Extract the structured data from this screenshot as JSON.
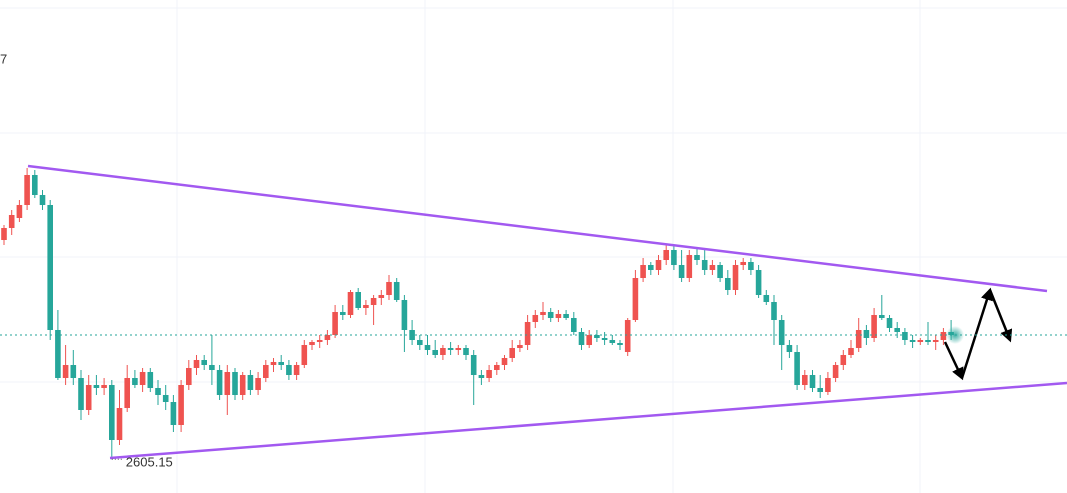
{
  "chart_data": {
    "type": "candlestick",
    "annotations": [
      "7"
    ],
    "up_color": "#ef5350",
    "down_color": "#26a69a",
    "ylim": [
      2598.4,
      2697
    ],
    "open": [
      2649,
      2651.4,
      2653.4,
      2656,
      2662,
      2658,
      2656,
      2631,
      2621.4,
      2624,
      2621.4,
      2615,
      2620,
      2619.4,
      2620,
      2609,
      2615.4,
      2621.4,
      2620,
      2622.6,
      2619.4,
      2618,
      2616.6,
      2612,
      2620,
      2623.4,
      2625,
      2624,
      2623,
      2618,
      2622.6,
      2618,
      2622,
      2619,
      2621.4,
      2624,
      2624.6,
      2624,
      2622,
      2624,
      2628,
      2628.6,
      2629,
      2630,
      2634.6,
      2634,
      2638.6,
      2635.4,
      2636,
      2637.4,
      2638,
      2640.6,
      2637,
      2631,
      2629,
      2628,
      2627,
      2626,
      2627.4,
      2627,
      2627.4,
      2626,
      2622,
      2621.4,
      2623,
      2624,
      2625.4,
      2627.4,
      2628,
      2632.6,
      2634,
      2634.6,
      2633.4,
      2634.2,
      2633.4,
      2630.6,
      2628,
      2630,
      2629.4,
      2629,
      2628.4,
      2626.6,
      2633,
      2641.4,
      2644,
      2643,
      2645,
      2647,
      2644,
      2641.4,
      2646,
      2645,
      2643,
      2644,
      2641.4,
      2639,
      2644,
      2644.6,
      2643,
      2638,
      2636.6,
      2633,
      2628,
      2626.6,
      2620,
      2622,
      2619.4,
      2618.6,
      2621.4,
      2624,
      2626,
      2627.4,
      2631,
      2629.4,
      2634,
      2633.4,
      2631.4,
      2630.6,
      2629,
      2628.6,
      2629,
      2628.6,
      2629,
      2630.6
    ],
    "high": [
      2652,
      2655,
      2657,
      2663.4,
      2663,
      2659,
      2657,
      2635,
      2628,
      2627,
      2623,
      2622,
      2622,
      2621.4,
      2621,
      2619,
      2624,
      2623,
      2623.4,
      2623.4,
      2621,
      2620,
      2618,
      2621,
      2625,
      2626,
      2626,
      2630,
      2624,
      2624,
      2623.4,
      2622.6,
      2623,
      2622.6,
      2625,
      2625.4,
      2626,
      2625,
      2624.6,
      2629,
      2629,
      2630,
      2631,
      2636,
      2636,
      2639,
      2639.4,
      2637,
      2638,
      2639,
      2642,
      2641.4,
      2638,
      2633,
      2630,
      2630,
      2629,
      2628,
      2628.6,
      2628,
      2628,
      2627,
      2623,
      2624,
      2624.6,
      2626,
      2629,
      2629,
      2634,
      2635,
      2636.6,
      2635.4,
      2635,
      2635,
      2634.6,
      2631.4,
      2631,
      2631,
      2630.6,
      2630,
      2629,
      2633.4,
      2643,
      2645.4,
      2644.6,
      2646,
      2648,
      2648,
      2647,
      2647,
      2647.4,
      2647,
      2645,
      2644.6,
      2643,
      2645,
      2645.4,
      2645.4,
      2644,
      2639,
      2638,
      2634,
      2629,
      2628,
      2623,
      2623,
      2622,
      2622.6,
      2624.6,
      2627,
      2629,
      2633.4,
      2632,
      2635.4,
      2638,
      2634,
      2632.6,
      2631.4,
      2630,
      2629.4,
      2632.6,
      2630,
      2631.4,
      2633
    ],
    "low": [
      2648,
      2650,
      2652.6,
      2655,
      2657.4,
      2655,
      2629,
      2621,
      2620,
      2620,
      2613,
      2614,
      2618,
      2618,
      2605.15,
      2608,
      2614.6,
      2619.4,
      2618.6,
      2618.6,
      2616,
      2615,
      2610.6,
      2610.6,
      2619,
      2622,
      2623,
      2620,
      2617,
      2614,
      2617,
      2617,
      2618,
      2618,
      2620.6,
      2622.6,
      2623,
      2621,
      2621,
      2623.4,
      2627,
      2627.4,
      2628,
      2629.4,
      2633,
      2633.4,
      2635,
      2634,
      2632,
      2636,
      2637,
      2636.6,
      2626.6,
      2628,
      2627,
      2626,
      2625.4,
      2625,
      2626,
      2626,
      2625,
      2616,
      2620,
      2620.6,
      2622,
      2623,
      2624.6,
      2626.6,
      2627,
      2631.4,
      2633,
      2632.6,
      2632.6,
      2633,
      2630,
      2627,
      2627.4,
      2628.6,
      2628,
      2628,
      2627,
      2625.8,
      2632.6,
      2640.6,
      2642,
      2642,
      2644,
      2643,
      2640.6,
      2640.6,
      2644,
      2642,
      2642,
      2640.6,
      2638,
      2638,
      2643,
      2642,
      2637.4,
      2636,
      2628,
      2623,
      2625.4,
      2619,
      2619,
      2618.6,
      2617.4,
      2618,
      2620.6,
      2623,
      2625.4,
      2626.6,
      2628,
      2628.6,
      2633,
      2630.6,
      2629.4,
      2628,
      2627.4,
      2628,
      2628,
      2627,
      2628,
      2629
    ],
    "close": [
      2651.4,
      2654,
      2656,
      2662,
      2658,
      2656,
      2631,
      2621.4,
      2624,
      2621.4,
      2615,
      2620,
      2619.4,
      2620,
      2609,
      2615.4,
      2621.4,
      2620,
      2622.6,
      2619.4,
      2618,
      2616.6,
      2612,
      2620,
      2623.4,
      2625,
      2624,
      2623,
      2618,
      2622.6,
      2618,
      2622,
      2619,
      2621.4,
      2624,
      2624.6,
      2624,
      2622,
      2624,
      2628,
      2628.6,
      2629,
      2630,
      2634.6,
      2634,
      2638.6,
      2635.4,
      2636,
      2637.4,
      2638,
      2640.6,
      2637,
      2631,
      2629,
      2628,
      2627,
      2626,
      2627.4,
      2627,
      2627.4,
      2626,
      2622,
      2621.4,
      2623,
      2624,
      2625.4,
      2627.4,
      2628,
      2632.6,
      2634,
      2634.6,
      2633.4,
      2634.2,
      2633.4,
      2630.6,
      2628,
      2630,
      2629.4,
      2629,
      2628.4,
      2628,
      2633,
      2641.4,
      2644,
      2643,
      2645,
      2647,
      2644,
      2641.4,
      2646,
      2645,
      2643,
      2644,
      2641.4,
      2639,
      2644,
      2644.6,
      2643,
      2638,
      2636.6,
      2633,
      2628,
      2626.6,
      2620,
      2622,
      2619.4,
      2618.6,
      2621.4,
      2624,
      2626,
      2627.4,
      2631,
      2629.4,
      2634,
      2633.4,
      2631.4,
      2630.6,
      2629,
      2628.6,
      2629,
      2628.6,
      2629,
      2630.6,
      2630
    ]
  }
}
